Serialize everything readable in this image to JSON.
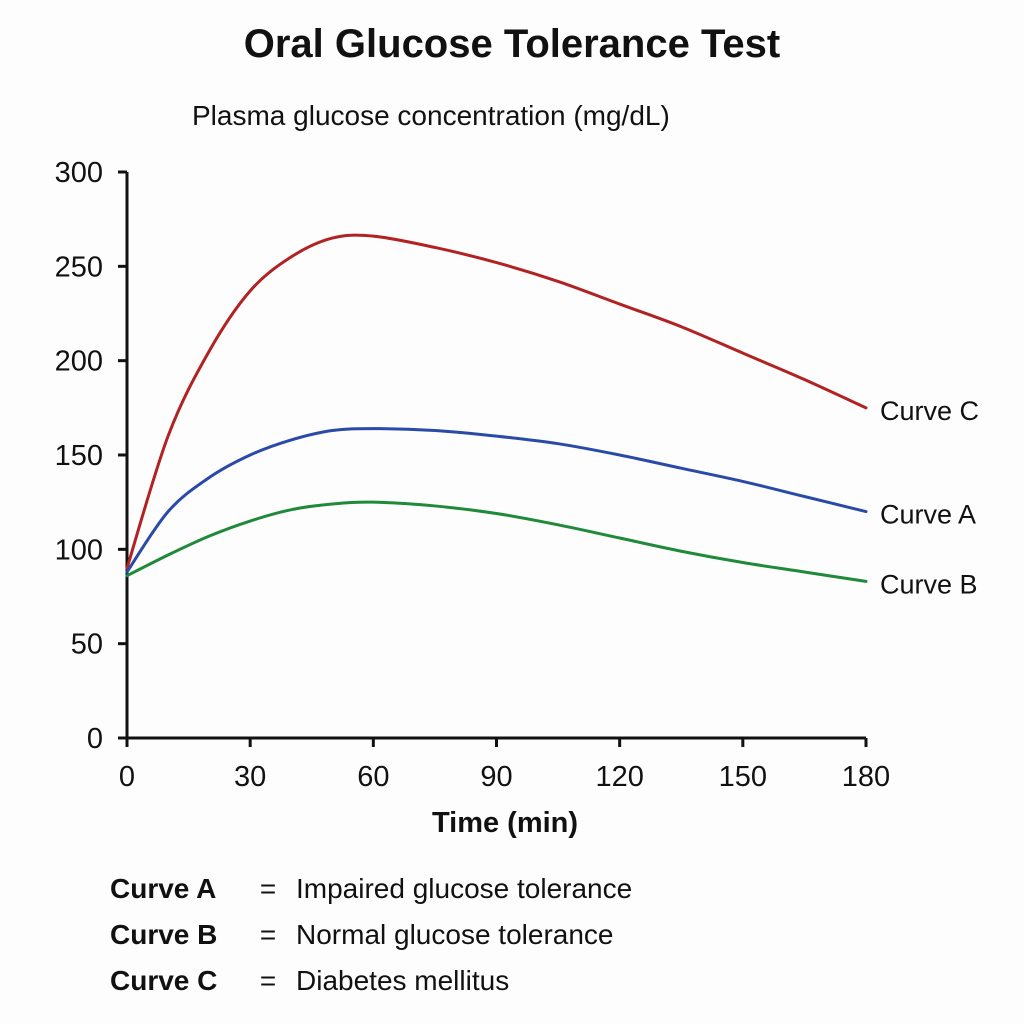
{
  "chart_data": {
    "type": "line",
    "title": "Oral Glucose Tolerance Test",
    "ylabel": "Plasma glucose concentration (mg/dL)",
    "xlabel": "Time (min)",
    "xlim": [
      0,
      180
    ],
    "ylim": [
      0,
      300
    ],
    "x_ticks": [
      0,
      30,
      60,
      90,
      120,
      150,
      180
    ],
    "y_ticks": [
      0,
      50,
      100,
      150,
      200,
      250,
      300
    ],
    "grid": false,
    "series": [
      {
        "name": "Curve C",
        "color": "#b22222",
        "x": [
          0,
          10,
          20,
          30,
          40,
          50,
          60,
          75,
          90,
          105,
          120,
          135,
          150,
          165,
          180
        ],
        "y": [
          90,
          160,
          205,
          237,
          255,
          265,
          266,
          260,
          252,
          242,
          230,
          218,
          204,
          190,
          175
        ]
      },
      {
        "name": "Curve A",
        "color": "#2a4aa8",
        "x": [
          0,
          10,
          20,
          30,
          40,
          50,
          60,
          75,
          90,
          105,
          120,
          135,
          150,
          165,
          180
        ],
        "y": [
          88,
          120,
          138,
          150,
          158,
          163,
          164,
          163,
          160,
          156,
          150,
          143,
          136,
          128,
          120
        ]
      },
      {
        "name": "Curve B",
        "color": "#1f8a3a",
        "x": [
          0,
          10,
          20,
          30,
          40,
          50,
          60,
          75,
          90,
          105,
          120,
          135,
          150,
          165,
          180
        ],
        "y": [
          86,
          97,
          107,
          115,
          121,
          124,
          125,
          123,
          119,
          113,
          106,
          99,
          93,
          88,
          83
        ]
      }
    ]
  },
  "legend": [
    {
      "key": "Curve A",
      "eq": "=",
      "desc": "Impaired glucose tolerance"
    },
    {
      "key": "Curve B",
      "eq": "=",
      "desc": "Normal glucose tolerance"
    },
    {
      "key": "Curve C",
      "eq": "=",
      "desc": "Diabetes mellitus"
    }
  ]
}
